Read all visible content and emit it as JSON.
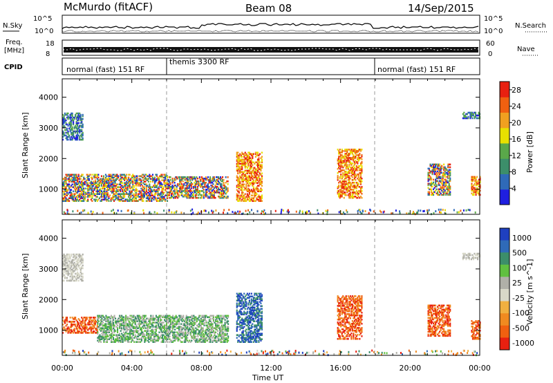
{
  "header": {
    "station": "McMurdo (fitACF)",
    "beam": "Beam 08",
    "date": "14/Sep/2015"
  },
  "top_panels": {
    "nsky_label": "N.Sky",
    "nsky_ticks": [
      "10^5",
      "10^0"
    ],
    "nsearch_label": "N.Search",
    "nsearch_ticks": [
      "10^5",
      "10^0"
    ],
    "freq_label": "Freq.",
    "freq_unit": "[MHz]",
    "freq_ticks": [
      "18",
      "8"
    ],
    "nave_label": "Nave",
    "nave_ticks": [
      "60",
      "0"
    ],
    "cpid_label": "CPID",
    "cpid_segments": [
      {
        "label": "normal (fast) 151 RF",
        "start": "00:00",
        "end": "06:00"
      },
      {
        "label": "themis 3300 RF",
        "start": "06:00",
        "end": "18:00"
      },
      {
        "label": "normal (fast) 151 RF",
        "start": "18:00",
        "end": "24:00"
      }
    ]
  },
  "colors": {
    "power": [
      "#1f1fe0",
      "#2f6ab8",
      "#3c8e6a",
      "#5aa84a",
      "#e8e000",
      "#f0a020",
      "#f06010",
      "#e82010"
    ],
    "velocity": [
      "#e82010",
      "#f06010",
      "#f08a20",
      "#f0b040",
      "#d8d8c8",
      "#b0b0a8",
      "#60c040",
      "#3c8e6a",
      "#2f6ab8",
      "#1f40c0"
    ]
  },
  "chart_data": [
    {
      "type": "heatmap",
      "name": "power",
      "xlabel": "",
      "ylabel": "Slant Range [km]",
      "xlim": [
        "00:00",
        "24:00"
      ],
      "ylim": [
        180,
        4600
      ],
      "yticks": [
        1000,
        2000,
        3000,
        4000
      ],
      "colorbar": {
        "label": "Power [dB]",
        "ticks": [
          4,
          8,
          12,
          16,
          20,
          24,
          28
        ],
        "range": [
          0,
          30
        ]
      },
      "echo_regions": [
        {
          "t_start": 0.0,
          "t_end": 6.0,
          "r_min": 600,
          "r_max": 1500,
          "level": "mixed"
        },
        {
          "t_start": 6.0,
          "t_end": 9.5,
          "r_min": 700,
          "r_max": 1400,
          "level": "mixed"
        },
        {
          "t_start": 10.0,
          "t_end": 11.5,
          "r_min": 600,
          "r_max": 2200,
          "level": "high"
        },
        {
          "t_start": 15.8,
          "t_end": 17.2,
          "r_min": 700,
          "r_max": 2300,
          "level": "high"
        },
        {
          "t_start": 21.0,
          "t_end": 22.3,
          "r_min": 800,
          "r_max": 1800,
          "level": "mixed"
        },
        {
          "t_start": 23.5,
          "t_end": 24.0,
          "r_min": 800,
          "r_max": 1400,
          "level": "high"
        },
        {
          "t_start": 0.0,
          "t_end": 1.2,
          "r_min": 2600,
          "r_max": 3500,
          "level": "low"
        },
        {
          "t_start": 23.0,
          "t_end": 24.0,
          "r_min": 3300,
          "r_max": 3500,
          "level": "low"
        }
      ]
    },
    {
      "type": "heatmap",
      "name": "velocity",
      "xlabel": "Time UT",
      "ylabel": "Slant Range [km]",
      "xlim": [
        "00:00",
        "24:00"
      ],
      "xticks": [
        "00:00",
        "04:00",
        "08:00",
        "12:00",
        "16:00",
        "20:00",
        "00:00"
      ],
      "ylim": [
        180,
        4600
      ],
      "yticks": [
        1000,
        2000,
        3000,
        4000
      ],
      "colorbar": {
        "label": "Velocity [m s^-1]",
        "ticks": [
          "1000",
          "500",
          "100",
          "25",
          "-25",
          "-100",
          "-500",
          "-1000"
        ]
      },
      "echo_regions": [
        {
          "t_start": 0.0,
          "t_end": 2.0,
          "r_min": 900,
          "r_max": 1400,
          "level": "towards"
        },
        {
          "t_start": 2.0,
          "t_end": 9.5,
          "r_min": 600,
          "r_max": 1500,
          "level": "low"
        },
        {
          "t_start": 10.0,
          "t_end": 11.5,
          "r_min": 600,
          "r_max": 2200,
          "level": "away"
        },
        {
          "t_start": 15.8,
          "t_end": 17.2,
          "r_min": 700,
          "r_max": 2100,
          "level": "towards"
        },
        {
          "t_start": 21.0,
          "t_end": 22.3,
          "r_min": 800,
          "r_max": 1800,
          "level": "towards"
        },
        {
          "t_start": 23.5,
          "t_end": 24.0,
          "r_min": 700,
          "r_max": 1300,
          "level": "towards"
        },
        {
          "t_start": 0.0,
          "t_end": 1.2,
          "r_min": 2600,
          "r_max": 3500,
          "level": "neutral"
        },
        {
          "t_start": 23.0,
          "t_end": 24.0,
          "r_min": 3300,
          "r_max": 3500,
          "level": "neutral"
        }
      ]
    }
  ]
}
